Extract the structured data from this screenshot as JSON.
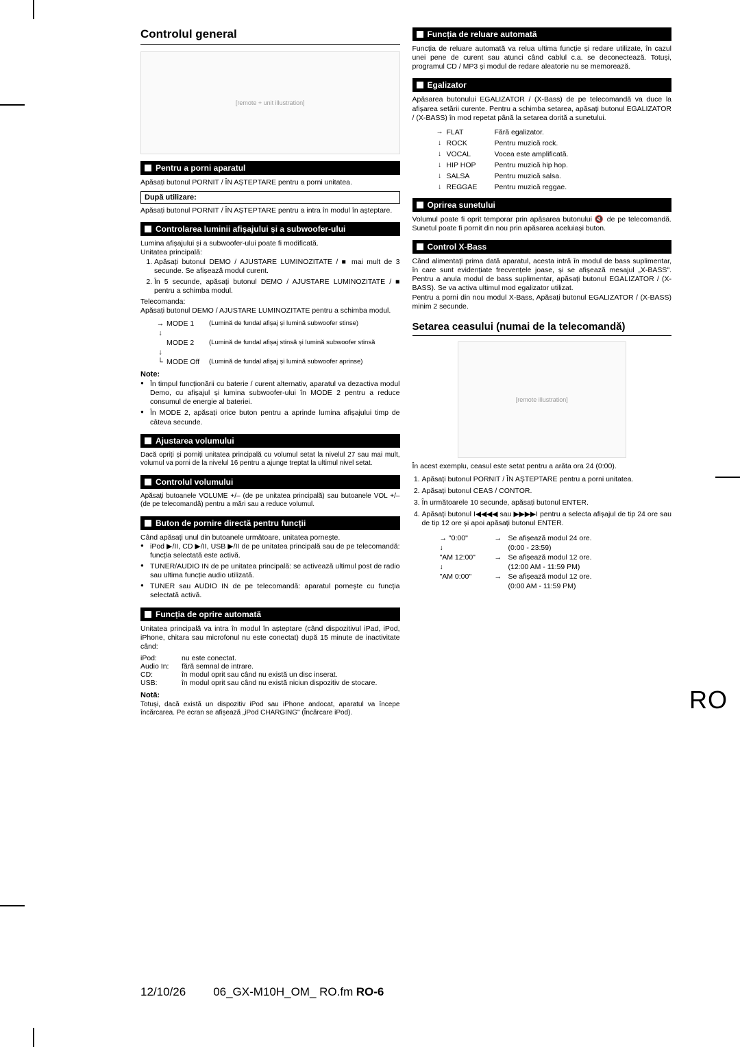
{
  "side_label": "RO",
  "page_number": "RO-6",
  "footer_date": "12/10/26",
  "footer_file": "06_GX-M10H_OM_ RO.fm",
  "left": {
    "h1": "Controlul general",
    "s1": {
      "title": "Pentru a porni aparatul",
      "p1": "Apăsați butonul PORNIT / ÎN AȘTEPTARE pentru a porni unitatea.",
      "box": "După utilizare:",
      "p2": "Apăsați butonul PORNIT / ÎN AȘTEPTARE pentru a intra în modul în așteptare."
    },
    "s2": {
      "title": "Controlarea luminii afișajului și a subwoofer-ului",
      "p1": "Lumina afișajului și a subwoofer-ului poate fi modificată.",
      "p2": "Unitatea principală:",
      "li1": "Apăsați butonul DEMO / AJUSTARE LUMINOZITATE / ■ mai mult de 3 secunde.\nSe afișează modul curent.",
      "li2": "În 5 secunde, apăsați butonul DEMO / AJUSTARE LUMINOZITATE / ■ pentru a schimba modul.",
      "p3": "Telecomanda:",
      "p4": "Apăsați butonul DEMO / AJUSTARE LUMINOZITATE pentru a schimba modul.",
      "m1k": "MODE 1",
      "m1v": "(Lumină de fundal afișaj și lumină subwoofer stinse)",
      "m2k": "MODE 2",
      "m2v": "(Lumină de fundal afișaj stinsă și lumină subwoofer stinsă",
      "m3k": "MODE Off",
      "m3v": "(Lumină de fundal afișaj și lumină subwoofer aprinse)",
      "note_head": "Note:",
      "n1": "În timpul funcționării cu baterie / curent alternativ, aparatul va dezactiva modul Demo, cu afișajul și lumina subwoofer-ului în MODE 2 pentru a reduce consumul de energie al bateriei.",
      "n2": "În MODE 2, apăsați orice buton pentru a aprinde lumina afișajului timp de câteva secunde."
    },
    "s3": {
      "title": "Ajustarea volumului",
      "p": "Dacă opriți și porniți unitatea principală cu volumul setat la nivelul 27 sau mai mult, volumul va porni de la nivelul 16 pentru a ajunge treptat la ultimul nivel setat."
    },
    "s4": {
      "title": "Controlul volumului",
      "p": "Apăsați butoanele VOLUME +/– (de pe unitatea principală) sau butoanele VOL +/– (de pe telecomandă) pentru a mări sau a reduce volumul."
    },
    "s5": {
      "title": "Buton de pornire directă pentru funcții",
      "p": "Când apăsați unul din butoanele următoare, unitatea pornește.",
      "b1": "iPod ▶/II, CD ▶/II, USB ▶/II de pe unitatea principală sau de pe telecomandă: funcția selectată este activă.",
      "b2": "TUNER/AUDIO IN de pe unitatea principală: se activează ultimul post de radio sau ultima funcție audio utilizată.",
      "b3": "TUNER sau AUDIO IN de pe telecomandă: aparatul pornește cu funcția selectată activă."
    },
    "s6": {
      "title": "Funcția de oprire automată",
      "p1": "Unitatea principală va intra în modul în așteptare (când dispozitivul iPad, iPod, iPhone, chitara sau microfonul nu este conectat) după 15 minute de inactivitate când:",
      "r1k": "iPod:",
      "r1v": "nu este conectat.",
      "r2k": "Audio In:",
      "r2v": "fără semnal de intrare.",
      "r3k": "CD:",
      "r3v": "în modul oprit sau când nu există un disc inserat.",
      "r4k": "USB:",
      "r4v": "în modul oprit sau când nu există niciun dispozitiv de stocare.",
      "note_head": "Notă:",
      "p2": "Totuși, dacă există un dispozitiv iPod sau iPhone andocat, aparatul va începe încărcarea. Pe ecran se afișează „iPod CHARGING\" (Încărcare iPod)."
    }
  },
  "right": {
    "s1": {
      "title": "Funcția de reluare automată",
      "p": "Funcția de reluare automată va relua ultima funcție și redare utilizate, în cazul unei pene de curent sau atunci când cablul c.a. se deconectează. Totuși, programul CD / MP3 și modul de redare aleatorie nu se memorează."
    },
    "s2": {
      "title": "Egalizator",
      "p": "Apăsarea butonului EGALIZATOR / (X-Bass) de pe telecomandă va duce la afișarea setării curente. Pentru a schimba setarea, apăsați butonul EGALIZATOR / (X-BASS) în mod repetat până la setarea dorită a sunetului.",
      "rows": [
        {
          "k": "FLAT",
          "v": "Fără egalizator."
        },
        {
          "k": "ROCK",
          "v": "Pentru muzică rock."
        },
        {
          "k": "VOCAL",
          "v": "Vocea este amplificată."
        },
        {
          "k": "HIP HOP",
          "v": "Pentru muzică hip hop."
        },
        {
          "k": "SALSA",
          "v": "Pentru muzică salsa."
        },
        {
          "k": "REGGAE",
          "v": "Pentru muzică reggae."
        }
      ]
    },
    "s3": {
      "title": "Oprirea sunetului",
      "p": "Volumul poate fi oprit temporar prin apăsarea butonului 🔇 de pe telecomandă. Sunetul poate fi pornit din nou prin apăsarea aceluiași buton."
    },
    "s4": {
      "title": "Control X-Bass",
      "p1": "Când alimentați prima dată aparatul, acesta intră în modul de bass suplimentar, în care sunt evidențiate frecvențele joase, și se afișează mesajul „X-BASS\". Pentru a anula modul de bass suplimentar, apăsați butonul EGALIZATOR / (X-BASS). Se va activa ultimul mod egalizator utilizat.",
      "p2": "Pentru a porni din nou modul X-Bass, Apăsați butonul EGALIZATOR / (X-BASS) minim 2 secunde."
    },
    "h2": "Setarea ceasului (numai de la telecomandă)",
    "c_p": "În acest exemplu, ceasul este setat pentru a arăta ora 24 (0:00).",
    "c_li1": "Apăsați butonul PORNIT / ÎN AȘTEPTARE pentru a porni unitatea.",
    "c_li2": "Apăsați butonul CEAS / CONTOR.",
    "c_li3": "În următoarele 10 secunde, apăsați butonul ENTER.",
    "c_li4": "Apăsați butonul I◀◀◀◀ sau ▶▶▶▶I pentru a selecta afișajul de tip 24 ore sau de tip 12 ore și apoi apăsați butonul ENTER.",
    "clock": [
      {
        "k": "\"0:00\"",
        "v": "Se afișează modul 24 ore.",
        "sub": "(0:00 - 23:59)"
      },
      {
        "k": "\"AM 12:00\"",
        "v": "Se afișează modul 12 ore.",
        "sub": "(12:00 AM - 11:59 PM)"
      },
      {
        "k": "\"AM 0:00\"",
        "v": "Se afișează modul 12 ore.",
        "sub": "(0:00 AM - 11:59 PM)"
      }
    ]
  }
}
